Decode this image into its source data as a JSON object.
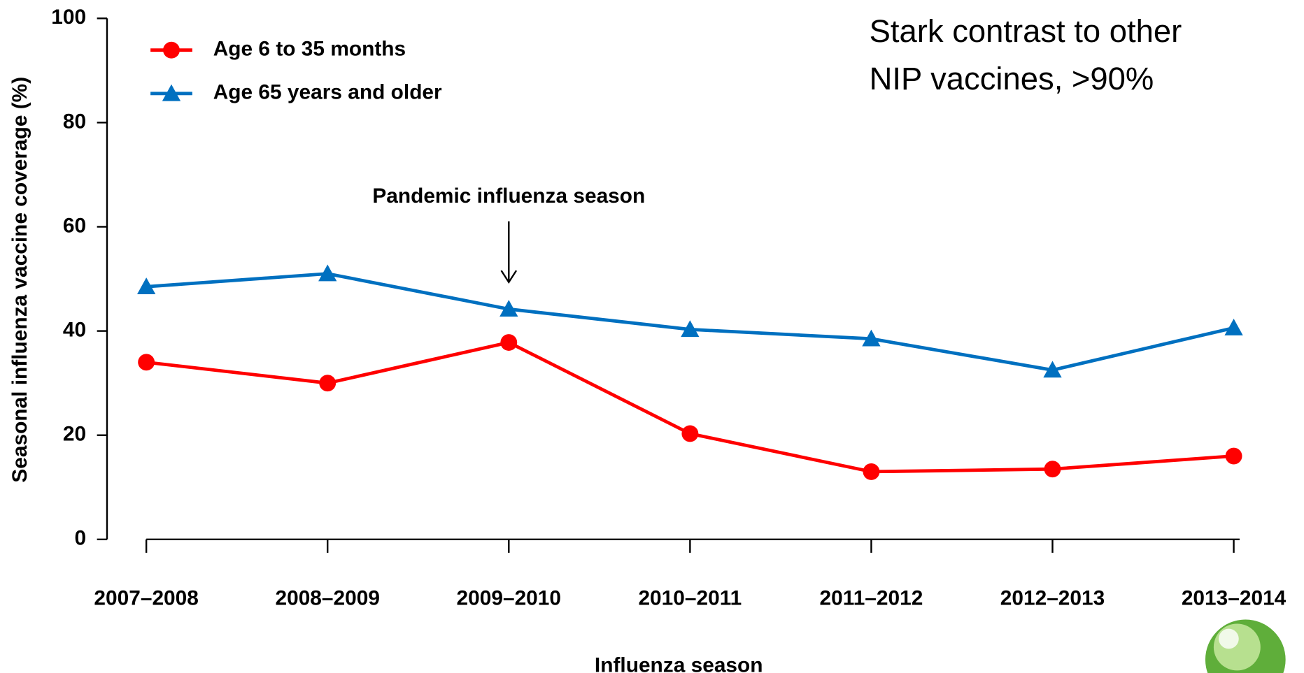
{
  "chart_data": {
    "type": "line",
    "categories": [
      "2007–2008",
      "2008–2009",
      "2009–2010",
      "2010–2011",
      "2011–2012",
      "2012–2013",
      "2013–2014"
    ],
    "series": [
      {
        "name": "Age 6 to 35 months",
        "color": "#ff0000",
        "marker": "circle",
        "values": [
          34,
          30,
          37.8,
          20.3,
          13,
          13.5,
          16
        ]
      },
      {
        "name": "Age 65 years and older",
        "color": "#0070c0",
        "marker": "triangle",
        "values": [
          48.5,
          51,
          44.2,
          40.3,
          38.5,
          32.5,
          40.6
        ]
      }
    ],
    "ylim": [
      0,
      100
    ],
    "yticks": [
      0,
      20,
      40,
      60,
      80,
      100
    ],
    "x_label": "Influenza season",
    "y_label": "Seasonal influenza vaccine coverage (%)",
    "annotations": [
      {
        "text": "Pandemic influenza season",
        "category": "2009–2010"
      }
    ],
    "note_lines": [
      "Stark contrast to other",
      "NIP vaccines, >90%"
    ],
    "legend": "upper left"
  }
}
